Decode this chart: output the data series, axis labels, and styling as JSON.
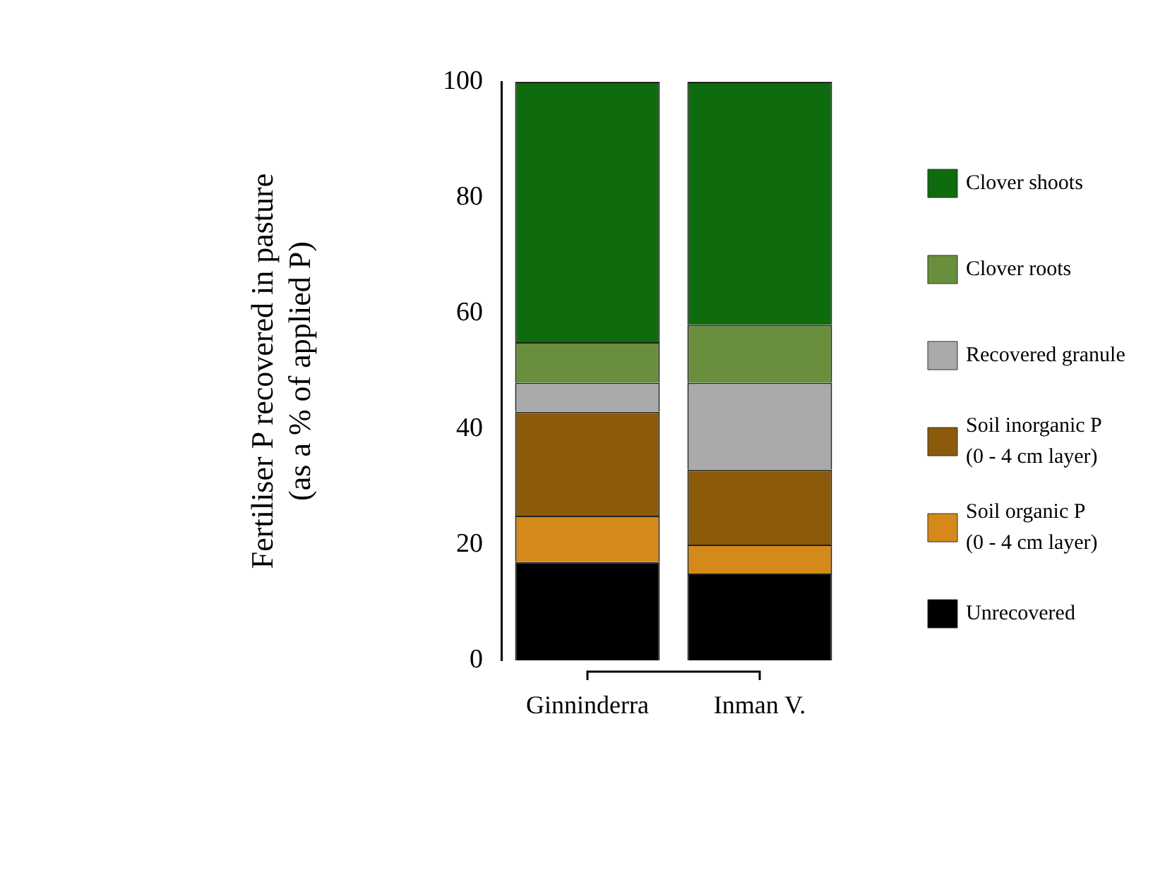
{
  "chart_data": {
    "type": "bar",
    "stacked": true,
    "ylabel": "Fertiliser P recovered in pasture\n(as a % of applied P)",
    "categories": [
      "Ginninderra",
      "Inman V."
    ],
    "ylim": [
      0,
      100
    ],
    "yticks": [
      0,
      20,
      40,
      60,
      80,
      100
    ],
    "grid": false,
    "legend": "right",
    "series": [
      {
        "name": "Unrecovered",
        "color": "#000000",
        "values": [
          17,
          15
        ]
      },
      {
        "name": "Soil organic P\n(0 - 4 cm layer)",
        "color": "#d4891a",
        "values": [
          8,
          5
        ]
      },
      {
        "name": "Soil inorganic P\n(0 - 4 cm layer)",
        "color": "#8b5a0a",
        "values": [
          18,
          13
        ]
      },
      {
        "name": "Recovered granule",
        "color": "#aaaaaa",
        "values": [
          5,
          15
        ]
      },
      {
        "name": "Clover roots",
        "color": "#6a8f3c",
        "values": [
          7,
          10
        ]
      },
      {
        "name": "Clover shoots",
        "color": "#0e6b0e",
        "values": [
          45,
          42
        ]
      }
    ]
  }
}
